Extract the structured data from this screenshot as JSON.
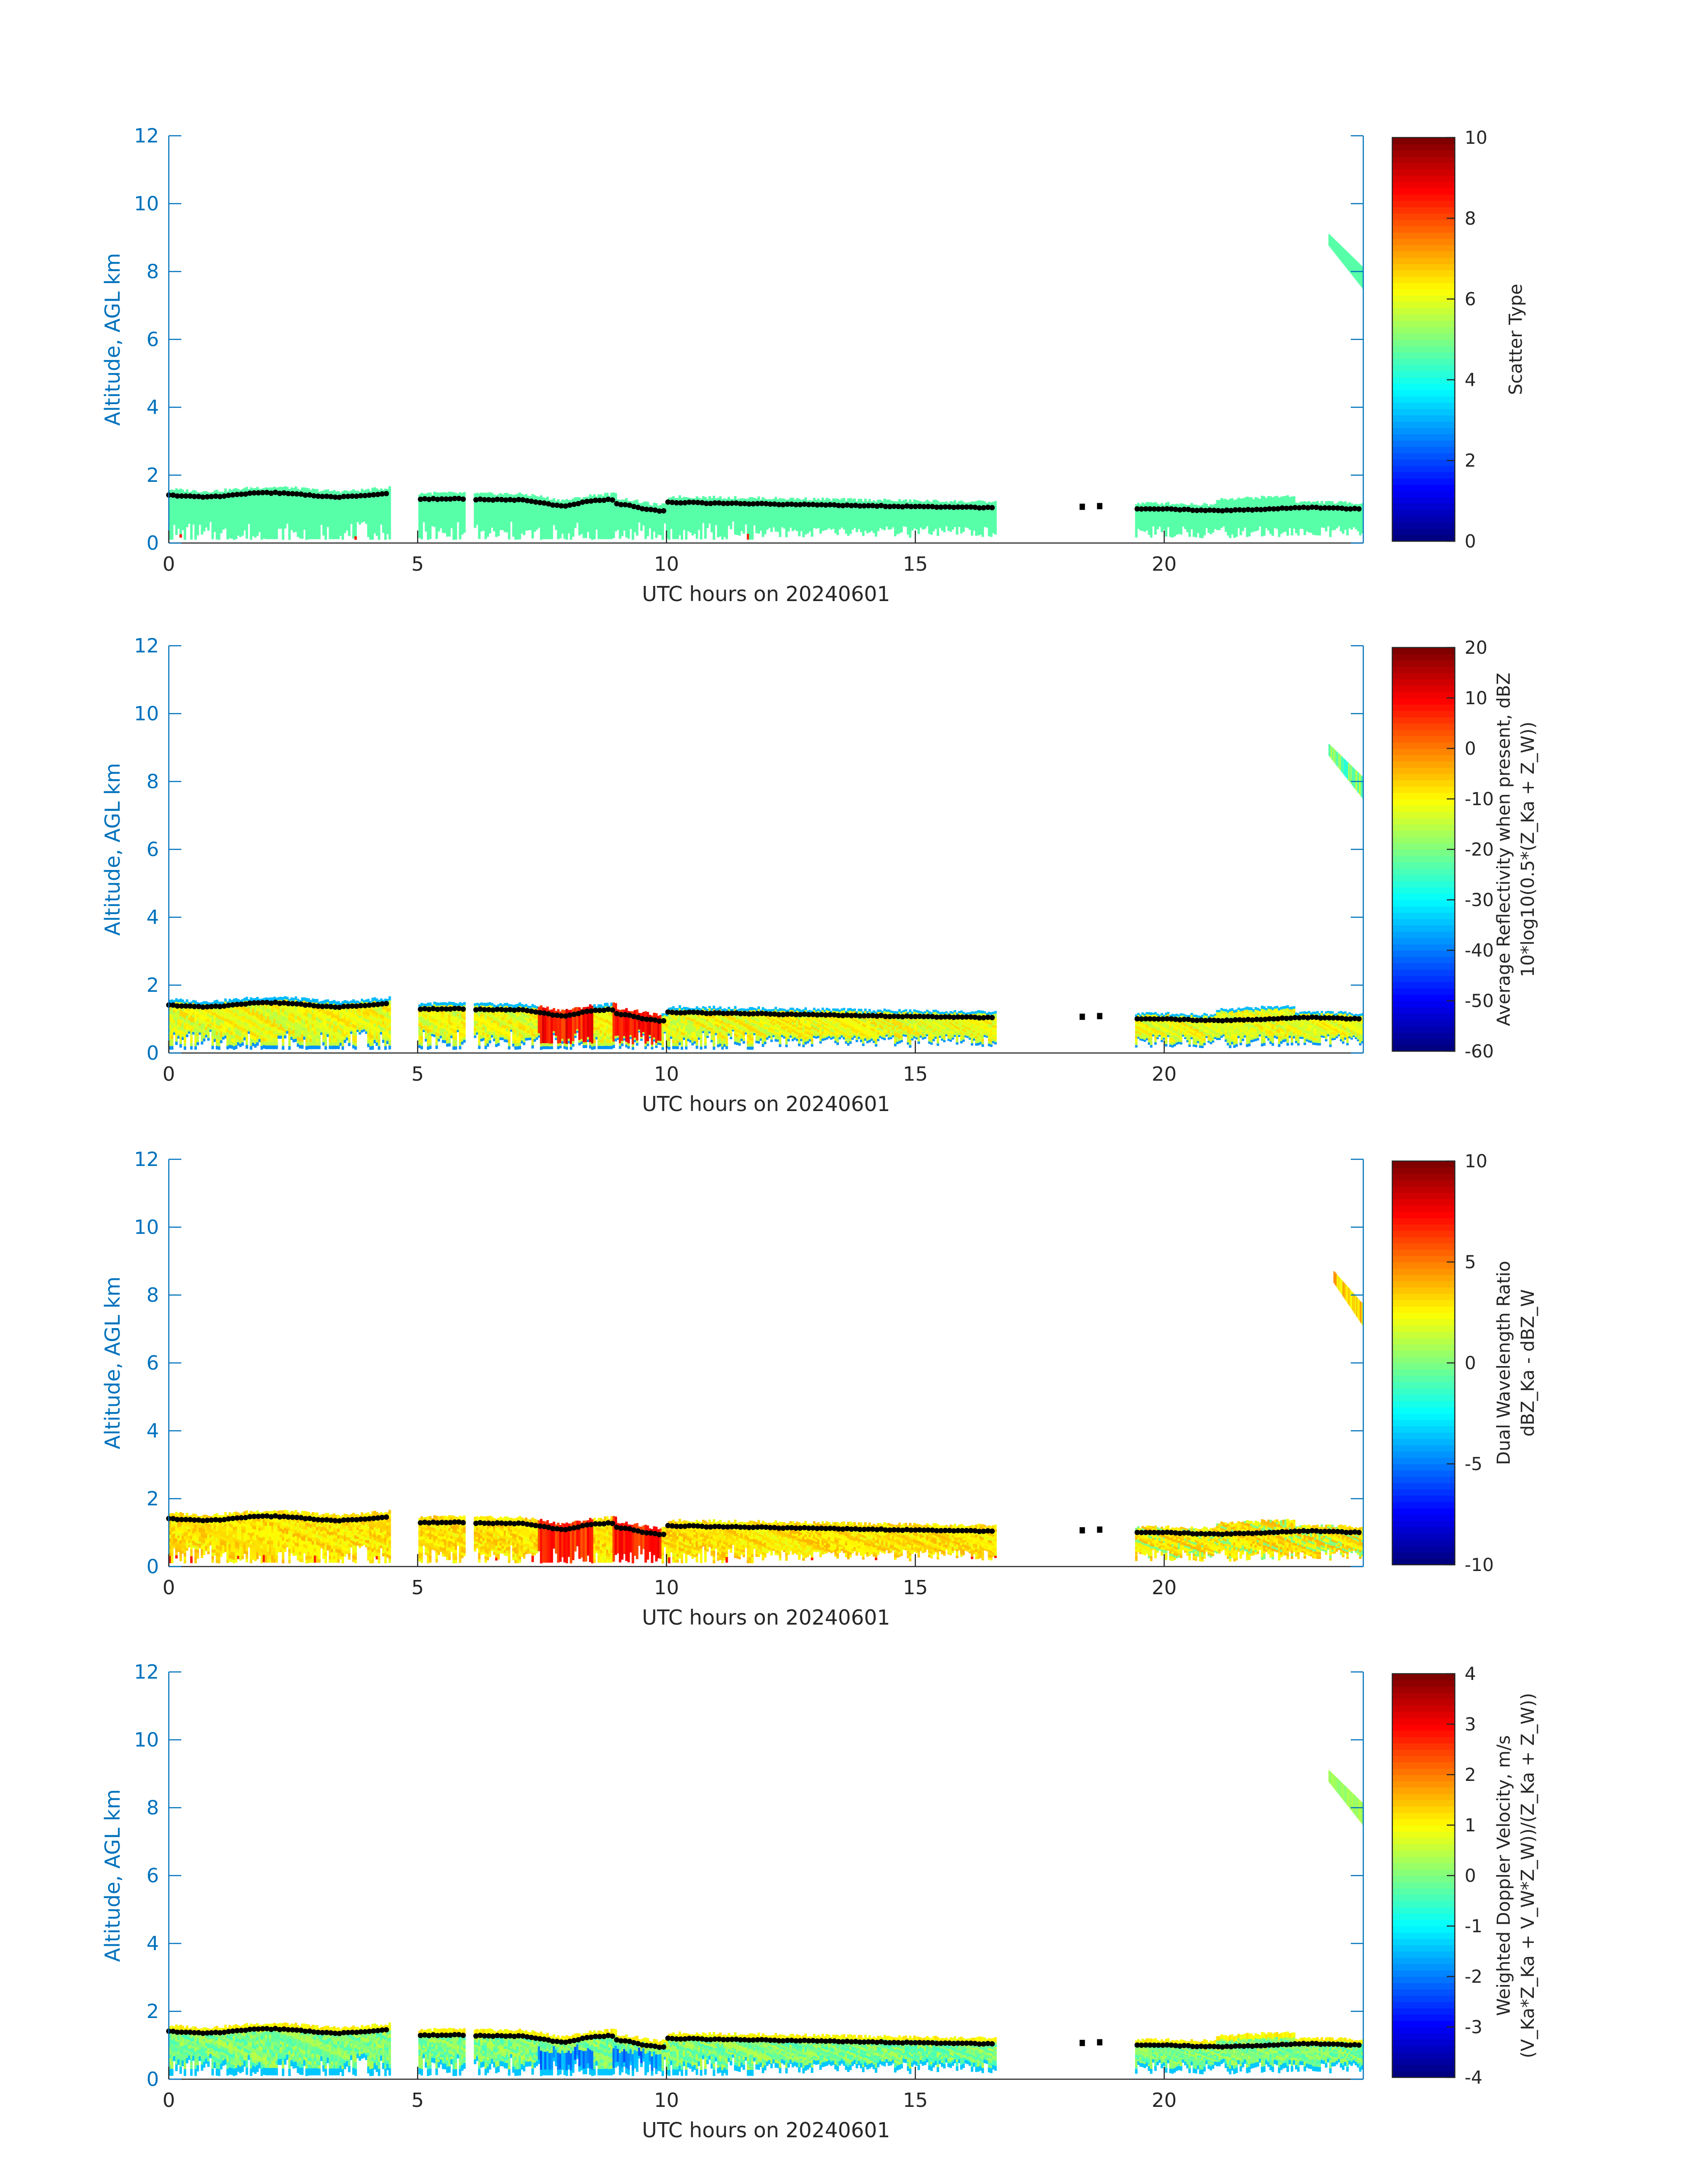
{
  "figure": {
    "date": "20240601",
    "time_axis": "UTC hours on 20240601",
    "height_axis": "Altitude, AGL km"
  },
  "colors": {
    "axis_blue": "#0072bd",
    "text": "#262626",
    "cloud_top_line": "#000000",
    "colormap": "jet"
  },
  "chart_data": [
    {
      "type": "heatmap",
      "xlabel": "UTC hours on 20240601",
      "ylabel": "Altitude, AGL km",
      "xlim": [
        0,
        24
      ],
      "ylim": [
        0,
        12
      ],
      "xticks": [
        0,
        5,
        10,
        15,
        20
      ],
      "yticks": [
        0,
        2,
        4,
        6,
        8,
        10,
        12
      ],
      "colorbar": {
        "label": [
          "Scatter Type"
        ],
        "clim": [
          0,
          10
        ],
        "ticks": [
          0,
          2,
          4,
          6,
          8,
          10
        ]
      },
      "dominant_value": "4.2 (low cloud layer, all times)",
      "cloud_regions_hours": [
        [
          0,
          4.45
        ],
        [
          5.0,
          5.95
        ],
        [
          6.1,
          16.6
        ],
        [
          19.4,
          24
        ]
      ],
      "upper_cloud": {
        "hours": [
          23.3,
          24
        ],
        "altitude_km": [
          7.3,
          9.1
        ]
      },
      "cloud_top_km": {
        "hours": [
          0,
          4,
          8,
          10,
          15,
          16.6,
          20,
          24
        ],
        "values": [
          1.4,
          1.35,
          1.1,
          1.2,
          1.1,
          1.05,
          1.0,
          1.05
        ]
      }
    },
    {
      "type": "heatmap",
      "xlabel": "UTC hours on 20240601",
      "ylabel": "Altitude, AGL km",
      "xlim": [
        0,
        24
      ],
      "ylim": [
        0,
        12
      ],
      "xticks": [
        0,
        5,
        10,
        15,
        20
      ],
      "yticks": [
        0,
        2,
        4,
        6,
        8,
        10,
        12
      ],
      "colorbar": {
        "label": [
          "Average Reflectivity when present, dBZ",
          "10*log10(0.5*(Z_Ka + Z_W))"
        ],
        "clim": [
          -60,
          20
        ],
        "ticks": [
          -60,
          -50,
          -40,
          -30,
          -20,
          -10,
          0,
          10,
          20
        ]
      },
      "range_dbz": [
        -55,
        10
      ],
      "max_region_hours": [
        [
          7.4,
          8.5
        ],
        [
          8.9,
          9.9
        ]
      ],
      "upper_cloud": {
        "hours": [
          23.3,
          24
        ],
        "altitude_km": [
          7.3,
          9.1
        ]
      }
    },
    {
      "type": "heatmap",
      "xlabel": "UTC hours on 20240601",
      "ylabel": "Altitude, AGL km",
      "xlim": [
        0,
        24
      ],
      "ylim": [
        0,
        12
      ],
      "xticks": [
        0,
        5,
        10,
        15,
        20
      ],
      "yticks": [
        0,
        2,
        4,
        6,
        8,
        10,
        12
      ],
      "colorbar": {
        "label": [
          "Dual Wavelength Ratio",
          "dBZ_Ka - dBZ_W"
        ],
        "clim": [
          -10,
          10
        ],
        "ticks": [
          -10,
          -5,
          0,
          5,
          10
        ]
      },
      "typical_db": [
        0,
        4
      ],
      "max_region_hours": [
        [
          7.4,
          8.5
        ],
        [
          8.9,
          9.9
        ]
      ],
      "upper_cloud": {
        "hours": [
          23.4,
          24
        ],
        "altitude_km": [
          7.4,
          8.7
        ]
      }
    },
    {
      "type": "heatmap",
      "xlabel": "UTC hours on 20240601",
      "ylabel": "Altitude, AGL km",
      "xlim": [
        0,
        24
      ],
      "ylim": [
        0,
        12
      ],
      "xticks": [
        0,
        5,
        10,
        15,
        20
      ],
      "yticks": [
        0,
        2,
        4,
        6,
        8,
        10,
        12
      ],
      "colorbar": {
        "label": [
          "Weighted Doppler Velocity, m/s",
          "(V_Ka*Z_Ka + V_W*Z_W))/(Z_Ka + Z_W))"
        ],
        "clim": [
          -4,
          4
        ],
        "ticks": [
          -4,
          -3,
          -2,
          -1,
          0,
          1,
          2,
          3,
          4
        ]
      },
      "typical_ms": [
        -1.5,
        0.5
      ],
      "min_region_hours": [
        [
          7.4,
          8.5
        ],
        [
          8.9,
          9.9
        ]
      ],
      "upper_cloud": {
        "hours": [
          23.3,
          24
        ],
        "altitude_km": [
          7.3,
          9.1
        ]
      }
    }
  ]
}
